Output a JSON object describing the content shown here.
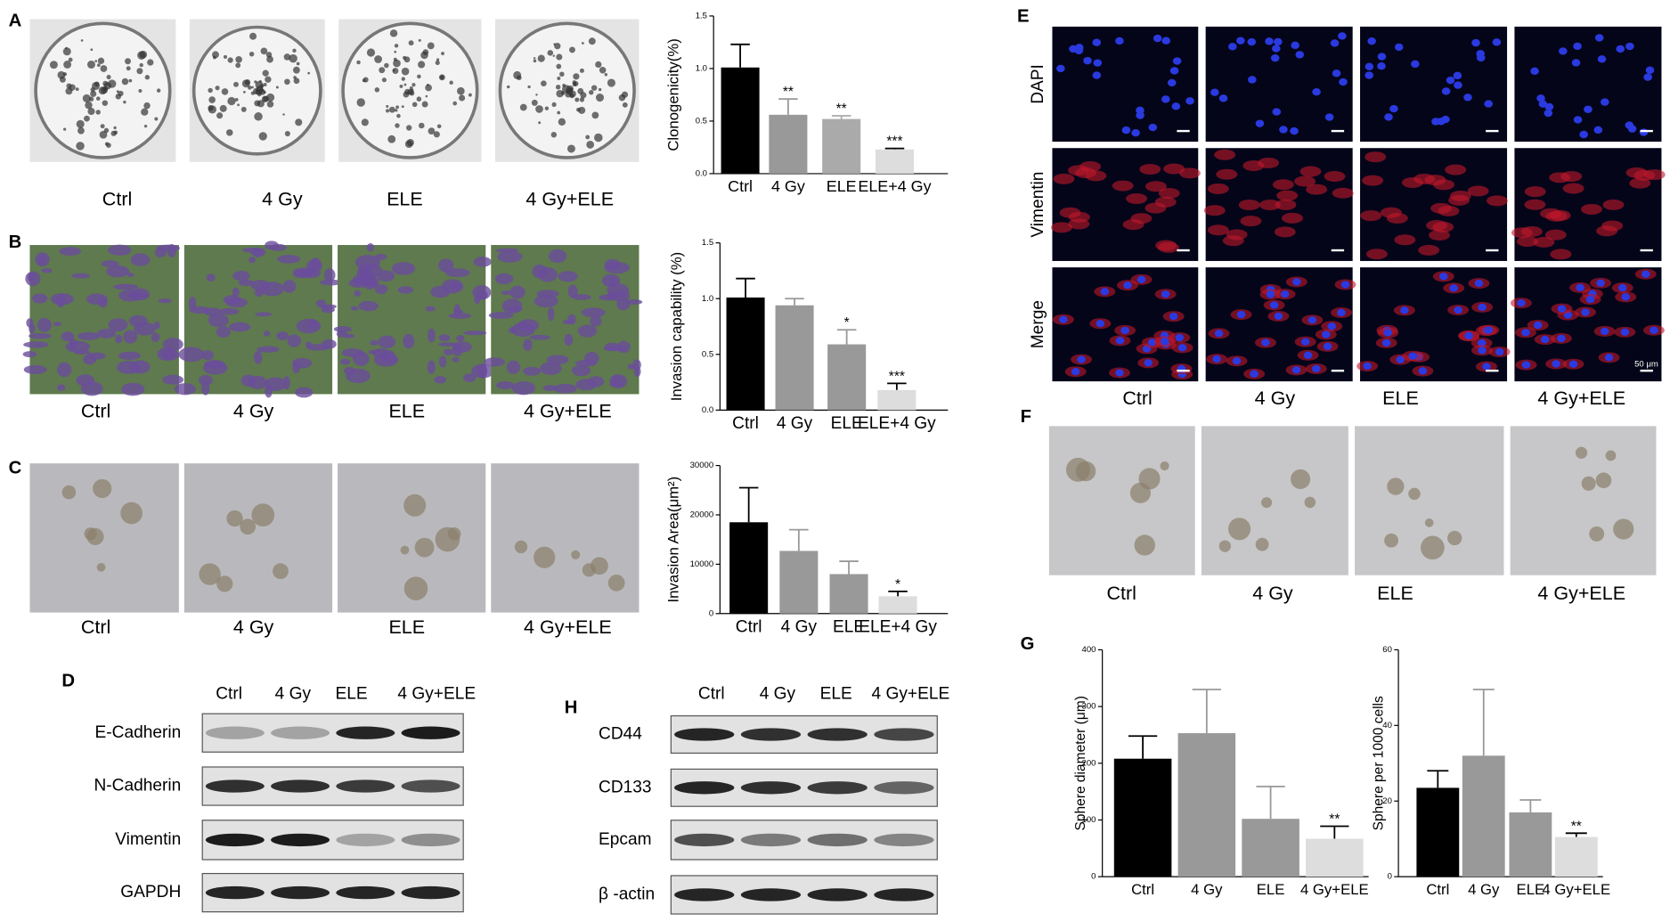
{
  "panel_labels": [
    "A",
    "B",
    "C",
    "D",
    "E",
    "F",
    "G",
    "H"
  ],
  "photo_panels": [
    {
      "captions": [
        "Ctrl",
        "4 Gy",
        "ELE",
        "4 Gy+ELE"
      ]
    },
    {
      "captions": [
        "Ctrl",
        "4 Gy",
        "ELE",
        "4 Gy+ELE"
      ]
    },
    {
      "captions": [
        "Ctrl",
        "4 Gy",
        "ELE",
        "4 Gy+ELE"
      ]
    },
    {
      "captions": [
        "Ctrl",
        "4 Gy",
        "ELE",
        "4 Gy+ELE"
      ]
    }
  ],
  "panel_E": {
    "rows": [
      "DAPI",
      "Vimentin",
      "Merge"
    ],
    "scale_bar": "50 μm",
    "captions": [
      "Ctrl",
      "4 Gy",
      "ELE",
      "4 Gy+ELE"
    ]
  },
  "blots": [
    {
      "columns": [
        "Ctrl",
        "4 Gy",
        "ELE",
        "4 Gy+ELE"
      ],
      "rows": [
        "E-Cadherin",
        "N-Cadherin",
        "Vimentin",
        "GAPDH"
      ]
    },
    {
      "columns": [
        "Ctrl",
        "4 Gy",
        "ELE",
        "4 Gy+ELE"
      ],
      "rows": [
        "CD44",
        "CD133",
        "Epcam",
        "β -actin"
      ]
    }
  ],
  "chart_data": [
    {
      "type": "bar",
      "ylabel": "Clonogenicity(%)",
      "categories": [
        "Ctrl",
        "4 Gy",
        "ELE",
        "ELE+4 Gy"
      ],
      "values": [
        1.01,
        0.56,
        0.52,
        0.23
      ],
      "errors": [
        0.22,
        0.15,
        0.03,
        0.01
      ],
      "annotations": [
        null,
        "**",
        "**",
        "***"
      ],
      "colors": [
        "#000000",
        "#999999",
        "#aaaaaa",
        "#dddddd"
      ],
      "ylim": [
        0,
        1.5
      ],
      "yticks": [
        {
          "value": 0,
          "label": "0.0"
        },
        {
          "value": 0.5,
          "label": "0.5"
        },
        {
          "value": 1,
          "label": "1.0"
        },
        {
          "value": 1.5,
          "label": "1.5"
        }
      ]
    },
    {
      "type": "bar",
      "ylabel": "Invasion capability (%)",
      "categories": [
        "Ctrl",
        "4 Gy",
        "ELE",
        "ELE+4 Gy"
      ],
      "values": [
        1.01,
        0.94,
        0.59,
        0.18
      ],
      "errors": [
        0.17,
        0.06,
        0.13,
        0.06
      ],
      "annotations": [
        null,
        null,
        "*",
        "***"
      ],
      "colors": [
        "#000000",
        "#999999",
        "#999999",
        "#dddddd"
      ],
      "ylim": [
        0,
        1.5
      ],
      "yticks": [
        {
          "value": 0,
          "label": "0.0"
        },
        {
          "value": 0.5,
          "label": "0.5"
        },
        {
          "value": 1,
          "label": "1.0"
        },
        {
          "value": 1.5,
          "label": "1.5"
        }
      ]
    },
    {
      "type": "bar",
      "ylabel": "Invasion Area(μm²)",
      "categories": [
        "Ctrl",
        "4 Gy",
        "ELE",
        "ELE+4 Gy"
      ],
      "values": [
        18500,
        12700,
        8000,
        3500
      ],
      "errors": [
        7000,
        4300,
        2600,
        1000
      ],
      "annotations": [
        null,
        null,
        null,
        "*"
      ],
      "colors": [
        "#000000",
        "#999999",
        "#999999",
        "#dddddd"
      ],
      "ylim": [
        0,
        30000
      ],
      "yticks": [
        0,
        10000,
        20000,
        30000
      ]
    },
    {
      "type": "bar",
      "ylabel": "Sphere diameter (μm)",
      "categories": [
        "Ctrl",
        "4 Gy",
        "ELE",
        "4 Gy+ELE"
      ],
      "values": [
        208,
        253,
        102,
        67
      ],
      "errors": [
        40,
        77,
        57,
        22
      ],
      "annotations": [
        null,
        null,
        null,
        "**"
      ],
      "colors": [
        "#000000",
        "#999999",
        "#999999",
        "#dddddd"
      ],
      "ylim": [
        0,
        400
      ],
      "yticks": [
        0,
        100,
        200,
        300,
        400
      ]
    },
    {
      "type": "bar",
      "ylabel": "Sphere per 1000 cells",
      "categories": [
        "Ctrl",
        "4 Gy",
        "ELE",
        "4 Gy+ELE"
      ],
      "values": [
        23.5,
        32,
        17,
        10.5
      ],
      "errors": [
        4.5,
        17.5,
        3.3,
        1
      ],
      "annotations": [
        null,
        null,
        null,
        "**"
      ],
      "colors": [
        "#000000",
        "#999999",
        "#999999",
        "#dddddd"
      ],
      "ylim": [
        0,
        60
      ],
      "yticks": [
        0,
        20,
        40,
        60
      ]
    }
  ]
}
